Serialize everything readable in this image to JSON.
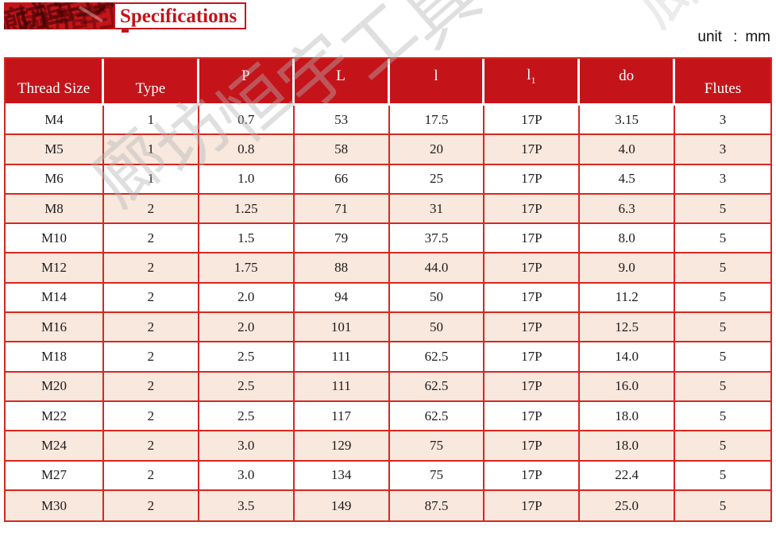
{
  "banner": {
    "title": "Specifications"
  },
  "unit_note": {
    "label": "unit",
    "colon": ":",
    "value": "mm"
  },
  "watermark": {
    "text": "廊坊恒宇工具"
  },
  "colors": {
    "header_red": "#c4141a",
    "grid_red": "#d8271f",
    "row_pink": "#f8e8de"
  },
  "table": {
    "columns": [
      {
        "label": "Thread Size",
        "align": "low"
      },
      {
        "label": "Type",
        "align": "low"
      },
      {
        "label": "P",
        "align": "high"
      },
      {
        "label": "L",
        "align": "high"
      },
      {
        "label": "l",
        "align": "high"
      },
      {
        "label": "l",
        "sub": "1",
        "align": "high"
      },
      {
        "label": "do",
        "align": "high"
      },
      {
        "label": "Flutes",
        "align": "low"
      }
    ],
    "rows": [
      [
        "M4",
        "1",
        "0.7",
        "53",
        "17.5",
        "17P",
        "3.15",
        "3"
      ],
      [
        "M5",
        "1",
        "0.8",
        "58",
        "20",
        "17P",
        "4.0",
        "3"
      ],
      [
        "M6",
        "1",
        "1.0",
        "66",
        "25",
        "17P",
        "4.5",
        "3"
      ],
      [
        "M8",
        "2",
        "1.25",
        "71",
        "31",
        "17P",
        "6.3",
        "5"
      ],
      [
        "M10",
        "2",
        "1.5",
        "79",
        "37.5",
        "17P",
        "8.0",
        "5"
      ],
      [
        "M12",
        "2",
        "1.75",
        "88",
        "44.0",
        "17P",
        "9.0",
        "5"
      ],
      [
        "M14",
        "2",
        "2.0",
        "94",
        "50",
        "17P",
        "11.2",
        "5"
      ],
      [
        "M16",
        "2",
        "2.0",
        "101",
        "50",
        "17P",
        "12.5",
        "5"
      ],
      [
        "M18",
        "2",
        "2.5",
        "111",
        "62.5",
        "17P",
        "14.0",
        "5"
      ],
      [
        "M20",
        "2",
        "2.5",
        "111",
        "62.5",
        "17P",
        "16.0",
        "5"
      ],
      [
        "M22",
        "2",
        "2.5",
        "117",
        "62.5",
        "17P",
        "18.0",
        "5"
      ],
      [
        "M24",
        "2",
        "3.0",
        "129",
        "75",
        "17P",
        "18.0",
        "5"
      ],
      [
        "M27",
        "2",
        "3.0",
        "134",
        "75",
        "17P",
        "22.4",
        "5"
      ],
      [
        "M30",
        "2",
        "3.5",
        "149",
        "87.5",
        "17P",
        "25.0",
        "5"
      ]
    ]
  }
}
